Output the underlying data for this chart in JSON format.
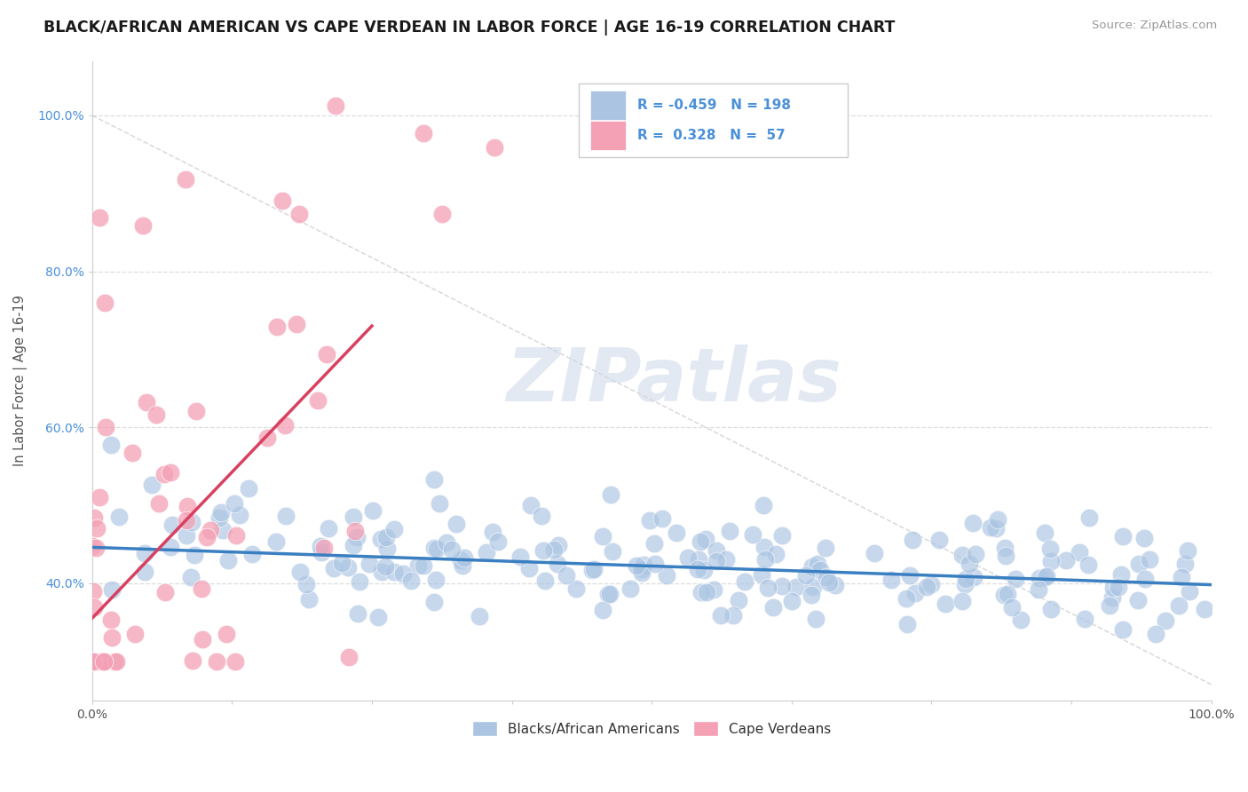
{
  "title": "BLACK/AFRICAN AMERICAN VS CAPE VERDEAN IN LABOR FORCE | AGE 16-19 CORRELATION CHART",
  "source_text": "Source: ZipAtlas.com",
  "ylabel": "In Labor Force | Age 16-19",
  "blue_r": -0.459,
  "blue_n": 198,
  "pink_r": 0.328,
  "pink_n": 57,
  "blue_color": "#aac4e2",
  "pink_color": "#f4a0b5",
  "blue_line_color": "#3a7fc1",
  "pink_line_color": "#d94060",
  "diag_line_color": "#cccccc",
  "grid_color": "#dddddd",
  "watermark_color": "#ccd8e8",
  "background_color": "#ffffff",
  "ylim_min": 0.25,
  "ylim_max": 1.07,
  "xlim_min": 0.0,
  "xlim_max": 1.0,
  "yticks": [
    0.4,
    0.6,
    0.8,
    1.0
  ],
  "ytick_labels": [
    "40.0%",
    "60.0%",
    "80.0%",
    "100.0%"
  ],
  "watermark_text": "ZIPatlas"
}
